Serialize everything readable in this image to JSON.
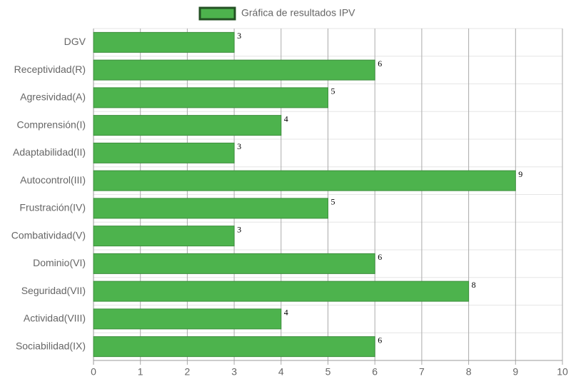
{
  "chart_data": {
    "type": "bar",
    "orientation": "horizontal",
    "categories": [
      "DGV",
      "Receptividad(R)",
      "Agresividad(A)",
      "Comprensión(I)",
      "Adaptabilidad(II)",
      "Autocontrol(III)",
      "Frustración(IV)",
      "Combatividad(V)",
      "Dominio(VI)",
      "Seguridad(VII)",
      "Actividad(VIII)",
      "Sociabilidad(IX)"
    ],
    "series": [
      {
        "name": "Gráfica de resultados IPV",
        "color": "#4db34d",
        "values": [
          3,
          6,
          5,
          4,
          3,
          9,
          5,
          3,
          6,
          8,
          4,
          6
        ]
      }
    ],
    "xlim": [
      0,
      10
    ],
    "xticks": [
      0,
      1,
      2,
      3,
      4,
      5,
      6,
      7,
      8,
      9,
      10
    ],
    "grid": true,
    "legend": "top",
    "data_labels": true
  }
}
